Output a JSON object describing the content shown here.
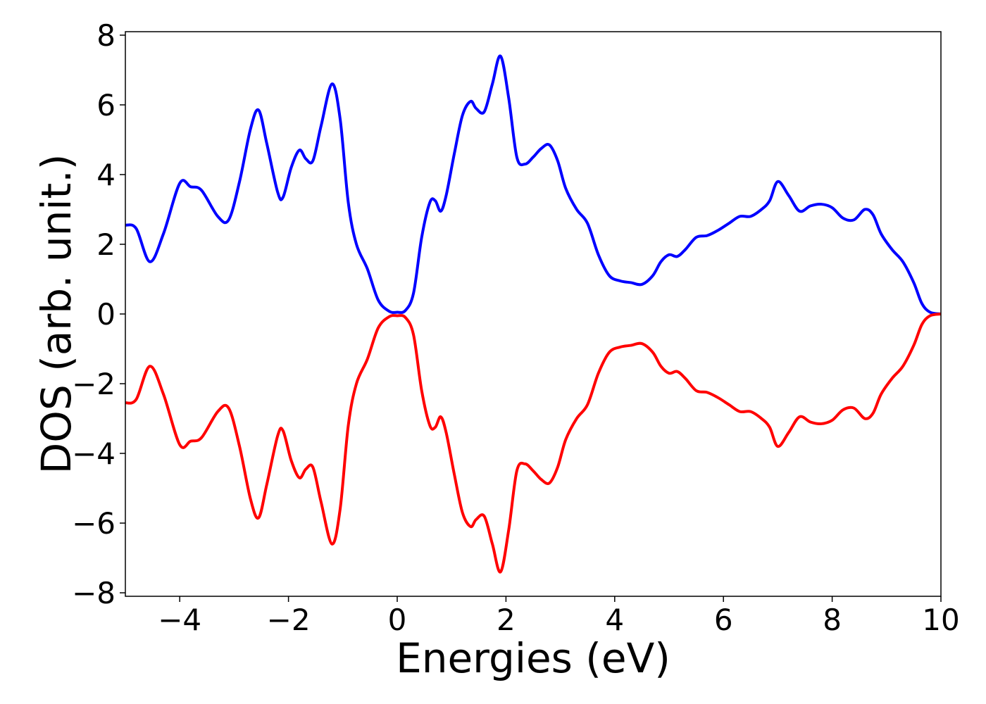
{
  "chart_data": {
    "type": "line",
    "title": "",
    "xlabel": "Energies (eV)",
    "ylabel": "DOS (arb. unit.)",
    "xlim": [
      -5,
      10
    ],
    "ylim": [
      -8.1,
      8.1
    ],
    "xticks": [
      -4,
      -2,
      0,
      2,
      4,
      6,
      8,
      10
    ],
    "xtick_labels": [
      "−4",
      "−2",
      "0",
      "2",
      "4",
      "6",
      "8",
      "10"
    ],
    "yticks": [
      8,
      6,
      4,
      2,
      0,
      -2,
      -4,
      -6,
      -8
    ],
    "ytick_labels": [
      "8",
      "6",
      "4",
      "2",
      "0",
      "−2",
      "−4",
      "−6",
      "−8"
    ],
    "grid": false,
    "legend": "none",
    "series": [
      {
        "color": "#0000ff",
        "x": [
          -5.0,
          -4.8,
          -4.55,
          -4.3,
          -4.0,
          -3.8,
          -3.6,
          -3.3,
          -3.1,
          -2.9,
          -2.7,
          -2.55,
          -2.4,
          -2.2,
          -2.1,
          -1.95,
          -1.8,
          -1.68,
          -1.55,
          -1.4,
          -1.2,
          -1.05,
          -0.9,
          -0.75,
          -0.55,
          -0.35,
          -0.15,
          0.0,
          0.15,
          0.3,
          0.45,
          0.6,
          0.7,
          0.8,
          0.9,
          1.05,
          1.2,
          1.35,
          1.45,
          1.6,
          1.75,
          1.9,
          2.05,
          2.2,
          2.35,
          2.5,
          2.65,
          2.8,
          2.95,
          3.1,
          3.3,
          3.5,
          3.7,
          3.9,
          4.1,
          4.3,
          4.5,
          4.7,
          4.85,
          5.0,
          5.15,
          5.3,
          5.5,
          5.7,
          5.9,
          6.1,
          6.3,
          6.5,
          6.7,
          6.85,
          7.0,
          7.2,
          7.4,
          7.6,
          7.8,
          8.0,
          8.2,
          8.4,
          8.6,
          8.75,
          8.9,
          9.1,
          9.3,
          9.5,
          9.65,
          9.8,
          10.0
        ],
        "y": [
          2.55,
          2.45,
          1.5,
          2.3,
          3.75,
          3.65,
          3.55,
          2.8,
          2.7,
          3.8,
          5.3,
          5.85,
          4.9,
          3.5,
          3.35,
          4.2,
          4.7,
          4.45,
          4.4,
          5.4,
          6.6,
          5.6,
          3.2,
          2.0,
          1.3,
          0.4,
          0.08,
          0.05,
          0.1,
          0.6,
          2.2,
          3.2,
          3.25,
          2.95,
          3.4,
          4.6,
          5.7,
          6.1,
          5.9,
          5.8,
          6.6,
          7.4,
          6.2,
          4.5,
          4.3,
          4.5,
          4.75,
          4.85,
          4.4,
          3.6,
          3.0,
          2.6,
          1.7,
          1.1,
          0.95,
          0.9,
          0.85,
          1.1,
          1.5,
          1.7,
          1.65,
          1.85,
          2.2,
          2.25,
          2.4,
          2.6,
          2.8,
          2.8,
          3.0,
          3.25,
          3.8,
          3.4,
          2.95,
          3.1,
          3.15,
          3.05,
          2.75,
          2.7,
          3.0,
          2.85,
          2.3,
          1.85,
          1.5,
          0.9,
          0.3,
          0.05,
          0.0
        ]
      },
      {
        "color": "#ff0000",
        "x": [
          -5.0,
          -4.8,
          -4.55,
          -4.3,
          -4.0,
          -3.8,
          -3.6,
          -3.3,
          -3.1,
          -2.9,
          -2.7,
          -2.55,
          -2.4,
          -2.2,
          -2.1,
          -1.95,
          -1.8,
          -1.68,
          -1.55,
          -1.4,
          -1.2,
          -1.05,
          -0.9,
          -0.75,
          -0.55,
          -0.35,
          -0.15,
          0.0,
          0.15,
          0.3,
          0.45,
          0.6,
          0.7,
          0.8,
          0.9,
          1.05,
          1.2,
          1.35,
          1.45,
          1.6,
          1.75,
          1.9,
          2.05,
          2.2,
          2.35,
          2.5,
          2.65,
          2.8,
          2.95,
          3.1,
          3.3,
          3.5,
          3.7,
          3.9,
          4.1,
          4.3,
          4.5,
          4.7,
          4.85,
          5.0,
          5.15,
          5.3,
          5.5,
          5.7,
          5.9,
          6.1,
          6.3,
          6.5,
          6.7,
          6.85,
          7.0,
          7.2,
          7.4,
          7.6,
          7.8,
          8.0,
          8.2,
          8.4,
          8.6,
          8.75,
          8.9,
          9.1,
          9.3,
          9.5,
          9.65,
          9.8,
          10.0
        ],
        "y": [
          -2.55,
          -2.45,
          -1.5,
          -2.3,
          -3.75,
          -3.65,
          -3.55,
          -2.8,
          -2.7,
          -3.8,
          -5.3,
          -5.85,
          -4.9,
          -3.5,
          -3.35,
          -4.2,
          -4.7,
          -4.45,
          -4.4,
          -5.4,
          -6.6,
          -5.6,
          -3.2,
          -2.0,
          -1.3,
          -0.4,
          -0.08,
          -0.05,
          -0.1,
          -0.6,
          -2.2,
          -3.2,
          -3.25,
          -2.95,
          -3.4,
          -4.6,
          -5.7,
          -6.1,
          -5.9,
          -5.8,
          -6.6,
          -7.4,
          -6.2,
          -4.5,
          -4.3,
          -4.5,
          -4.75,
          -4.85,
          -4.4,
          -3.6,
          -3.0,
          -2.6,
          -1.7,
          -1.1,
          -0.95,
          -0.9,
          -0.85,
          -1.1,
          -1.5,
          -1.7,
          -1.65,
          -1.85,
          -2.2,
          -2.25,
          -2.4,
          -2.6,
          -2.8,
          -2.8,
          -3.0,
          -3.25,
          -3.8,
          -3.4,
          -2.95,
          -3.1,
          -3.15,
          -3.05,
          -2.75,
          -2.7,
          -3.0,
          -2.85,
          -2.3,
          -1.85,
          -1.5,
          -0.9,
          -0.3,
          -0.05,
          0.0
        ]
      }
    ]
  }
}
